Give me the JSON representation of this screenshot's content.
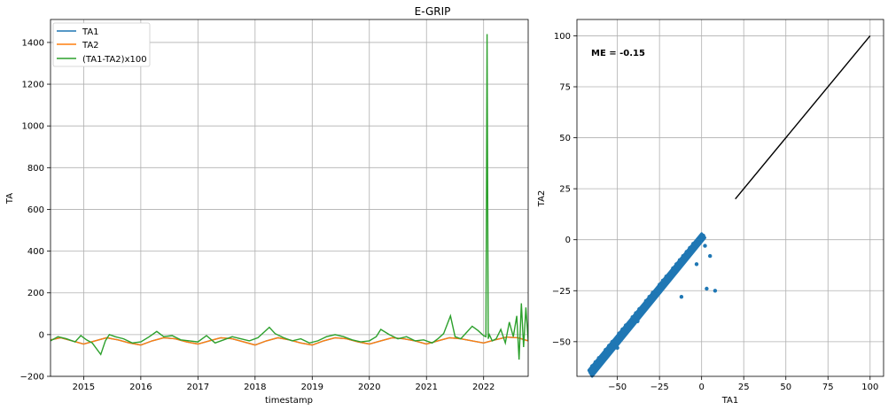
{
  "figure": {
    "title": "E-GRIP"
  },
  "chart_data": [
    {
      "type": "line",
      "title": "E-GRIP",
      "xlabel": "timestamp",
      "ylabel": "TA",
      "x_ticks": [
        "2015",
        "2016",
        "2017",
        "2018",
        "2019",
        "2020",
        "2021",
        "2022"
      ],
      "xlim": [
        2014.42,
        2022.78
      ],
      "y_ticks": [
        -200,
        0,
        200,
        400,
        600,
        800,
        1000,
        1200,
        1400
      ],
      "ylim": [
        -200,
        1510
      ],
      "grid": true,
      "legend_position": "top-left",
      "series": [
        {
          "name": "TA1",
          "color": "#1f77b4",
          "x": [
            2014.42,
            2014.6,
            2014.8,
            2015.0,
            2015.2,
            2015.4,
            2015.6,
            2015.8,
            2016.0,
            2016.2,
            2016.4,
            2016.6,
            2016.8,
            2017.0,
            2017.2,
            2017.4,
            2017.6,
            2017.8,
            2018.0,
            2018.2,
            2018.4,
            2018.6,
            2018.8,
            2019.0,
            2019.2,
            2019.4,
            2019.6,
            2019.8,
            2020.0,
            2020.2,
            2020.4,
            2020.6,
            2020.8,
            2021.0,
            2021.2,
            2021.4,
            2021.6,
            2021.8,
            2022.0,
            2022.2,
            2022.4,
            2022.6,
            2022.78
          ],
          "values": [
            -25,
            -15,
            -30,
            -45,
            -30,
            -15,
            -25,
            -40,
            -50,
            -30,
            -15,
            -20,
            -35,
            -45,
            -30,
            -15,
            -20,
            -35,
            -50,
            -30,
            -15,
            -25,
            -40,
            -50,
            -30,
            -15,
            -20,
            -35,
            -45,
            -30,
            -15,
            -20,
            -30,
            -45,
            -30,
            -15,
            -20,
            -30,
            -40,
            -25,
            -12,
            -15,
            -30
          ]
        },
        {
          "name": "TA2",
          "color": "#ff7f0e",
          "x": [
            2014.42,
            2014.6,
            2014.8,
            2015.0,
            2015.2,
            2015.4,
            2015.6,
            2015.8,
            2016.0,
            2016.2,
            2016.4,
            2016.6,
            2016.8,
            2017.0,
            2017.2,
            2017.4,
            2017.6,
            2017.8,
            2018.0,
            2018.2,
            2018.4,
            2018.6,
            2018.8,
            2019.0,
            2019.2,
            2019.4,
            2019.6,
            2019.8,
            2020.0,
            2020.2,
            2020.4,
            2020.6,
            2020.8,
            2021.0,
            2021.2,
            2021.4,
            2021.6,
            2021.8,
            2022.0,
            2022.2,
            2022.4,
            2022.6,
            2022.78
          ],
          "values": [
            -25,
            -15,
            -30,
            -45,
            -30,
            -15,
            -25,
            -40,
            -50,
            -30,
            -15,
            -20,
            -35,
            -45,
            -30,
            -15,
            -20,
            -35,
            -50,
            -30,
            -15,
            -25,
            -40,
            -50,
            -30,
            -15,
            -20,
            -35,
            -45,
            -30,
            -15,
            -20,
            -30,
            -45,
            -30,
            -15,
            -20,
            -30,
            -40,
            -25,
            -12,
            -15,
            -30
          ]
        },
        {
          "name": "(TA1-TA2)x100",
          "color": "#2ca02c",
          "x": [
            2014.42,
            2014.55,
            2014.7,
            2014.85,
            2014.95,
            2015.05,
            2015.15,
            2015.3,
            2015.38,
            2015.45,
            2015.55,
            2015.7,
            2015.85,
            2016.0,
            2016.15,
            2016.28,
            2016.4,
            2016.55,
            2016.7,
            2016.85,
            2017.0,
            2017.15,
            2017.3,
            2017.45,
            2017.6,
            2017.75,
            2017.9,
            2018.05,
            2018.15,
            2018.25,
            2018.35,
            2018.5,
            2018.65,
            2018.8,
            2018.95,
            2019.1,
            2019.25,
            2019.4,
            2019.55,
            2019.7,
            2019.85,
            2020.0,
            2020.12,
            2020.2,
            2020.35,
            2020.5,
            2020.65,
            2020.8,
            2020.95,
            2021.1,
            2021.2,
            2021.3,
            2021.42,
            2021.5,
            2021.6,
            2021.7,
            2021.8,
            2021.9,
            2022.0,
            2022.04,
            2022.06,
            2022.08,
            2022.1,
            2022.15,
            2022.22,
            2022.3,
            2022.38,
            2022.45,
            2022.52,
            2022.58,
            2022.62,
            2022.66,
            2022.7,
            2022.74,
            2022.78
          ],
          "values": [
            -30,
            -10,
            -20,
            -35,
            -5,
            -25,
            -40,
            -95,
            -30,
            0,
            -10,
            -20,
            -40,
            -35,
            -10,
            15,
            -10,
            -5,
            -25,
            -30,
            -35,
            -5,
            -40,
            -25,
            -10,
            -20,
            -30,
            -15,
            10,
            35,
            5,
            -15,
            -30,
            -20,
            -40,
            -30,
            -10,
            0,
            -10,
            -25,
            -35,
            -30,
            -10,
            25,
            0,
            -20,
            -10,
            -30,
            -25,
            -40,
            -20,
            5,
            90,
            -10,
            -20,
            10,
            40,
            20,
            -5,
            -10,
            1440,
            -20,
            0,
            -30,
            -20,
            25,
            -40,
            60,
            -10,
            90,
            -120,
            150,
            -60,
            130,
            -30
          ]
        }
      ]
    },
    {
      "type": "scatter",
      "xlabel": "TA1",
      "ylabel": "TA2",
      "x_ticks": [
        "−50",
        "−25",
        "0",
        "25",
        "50",
        "75",
        "100"
      ],
      "x_tick_values": [
        -50,
        -25,
        0,
        25,
        50,
        75,
        100
      ],
      "y_ticks": [
        "−50",
        "−25",
        "0",
        "25",
        "50",
        "75",
        "100"
      ],
      "y_tick_values": [
        -50,
        -25,
        0,
        25,
        50,
        75,
        100
      ],
      "xlim": [
        -74,
        108
      ],
      "ylim": [
        -67,
        108
      ],
      "grid": true,
      "annotation": "ME = -0.15",
      "point_color": "#1f77b4",
      "line_color": "#000000",
      "reference_line": {
        "x": [
          20,
          100
        ],
        "y": [
          20,
          100
        ]
      },
      "points_x": [
        -66,
        -64,
        -62,
        -60,
        -58,
        -56,
        -54,
        -52,
        -50,
        -48,
        -46,
        -44,
        -42,
        -40,
        -38,
        -36,
        -34,
        -32,
        -30,
        -28,
        -26,
        -24,
        -22,
        -20,
        -18,
        -16,
        -14,
        -12,
        -10,
        -8,
        -6,
        -4,
        -2,
        0,
        1,
        -65,
        -61,
        -57,
        -53,
        -49,
        -45,
        -41,
        -37,
        -33,
        -29,
        -25,
        -21,
        -17,
        -13,
        -9,
        -5,
        -1,
        -63,
        -55,
        -47,
        -39,
        -31,
        -23,
        -15,
        -7,
        -50,
        -38,
        -27,
        -19,
        -11,
        -6,
        -3,
        2,
        5,
        8,
        -12,
        -3,
        3
      ],
      "points_y": [
        -65,
        -63,
        -61,
        -59,
        -57,
        -55,
        -53,
        -51,
        -49,
        -47,
        -45,
        -43,
        -41,
        -39,
        -37,
        -35,
        -33,
        -31,
        -29,
        -27,
        -25,
        -23,
        -21,
        -19,
        -17,
        -15,
        -13,
        -11,
        -9,
        -7,
        -5,
        -3,
        -1,
        1,
        2,
        -62,
        -58,
        -54,
        -50,
        -46,
        -42,
        -38,
        -34,
        -30,
        -26,
        -22,
        -18,
        -14,
        -10,
        -6,
        -2,
        0,
        -60,
        -52,
        -44,
        -36,
        -28,
        -20,
        -12,
        -4,
        -53,
        -40,
        -25,
        -17,
        -8,
        -5,
        -2,
        -3,
        -8,
        -25,
        -28,
        -12,
        -24
      ]
    }
  ]
}
